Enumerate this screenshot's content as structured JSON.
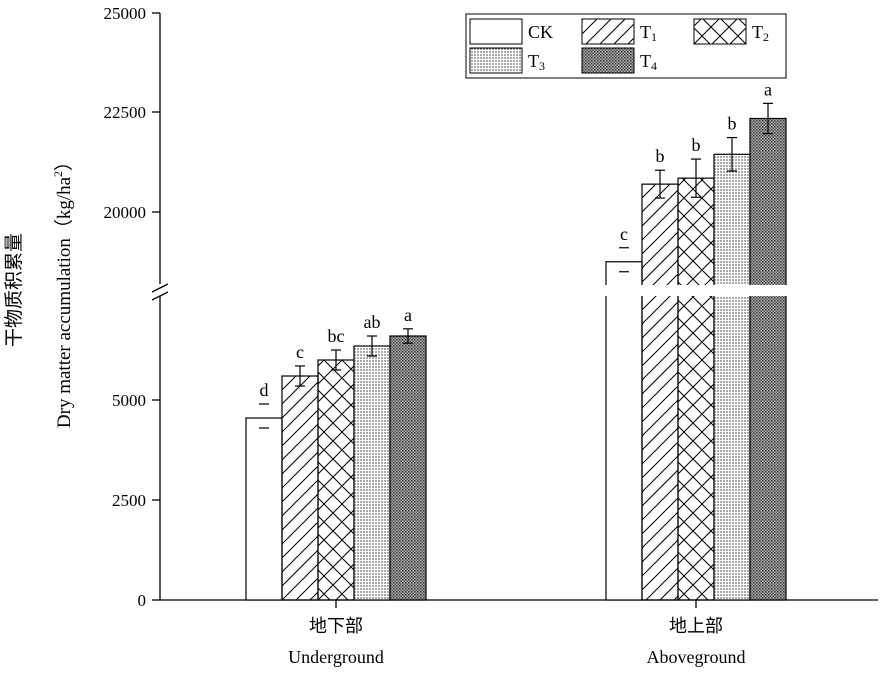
{
  "chart_data": {
    "type": "bar",
    "ylabel_cn": "干物质积累量",
    "ylabel_en": "Dry matter accumulation（kg/ha",
    "ylabel_sup": "2",
    "ylabel_close": "）",
    "yticks_lower": [
      "0",
      "2500",
      "5000"
    ],
    "yticks_upper": [
      "20000",
      "22500",
      "25000"
    ],
    "y_break": [
      7200,
      17800
    ],
    "categories": [
      {
        "cn": "地下部",
        "en": "Underground"
      },
      {
        "cn": "地上部",
        "en": "Aboveground"
      }
    ],
    "series": [
      {
        "name": "CK",
        "sub": "",
        "pattern": "blank",
        "values": [
          4550,
          18750
        ],
        "errors": [
          0,
          0
        ],
        "letters": [
          "d",
          "c"
        ]
      },
      {
        "name": "T",
        "sub": "1",
        "pattern": "hatch",
        "values": [
          5600,
          20700
        ],
        "errors": [
          250,
          350
        ],
        "letters": [
          "c",
          "b"
        ]
      },
      {
        "name": "T",
        "sub": "2",
        "pattern": "cross",
        "values": [
          6000,
          20850
        ],
        "errors": [
          250,
          480
        ],
        "letters": [
          "bc",
          "b"
        ]
      },
      {
        "name": "T",
        "sub": "3",
        "pattern": "lines",
        "values": [
          6350,
          21450
        ],
        "errors": [
          250,
          420
        ],
        "letters": [
          "ab",
          "b"
        ]
      },
      {
        "name": "T",
        "sub": "4",
        "pattern": "dots",
        "values": [
          6600,
          22350
        ],
        "errors": [
          180,
          380
        ],
        "letters": [
          "a",
          "a"
        ]
      }
    ],
    "grid": false,
    "legend": "top-right"
  }
}
